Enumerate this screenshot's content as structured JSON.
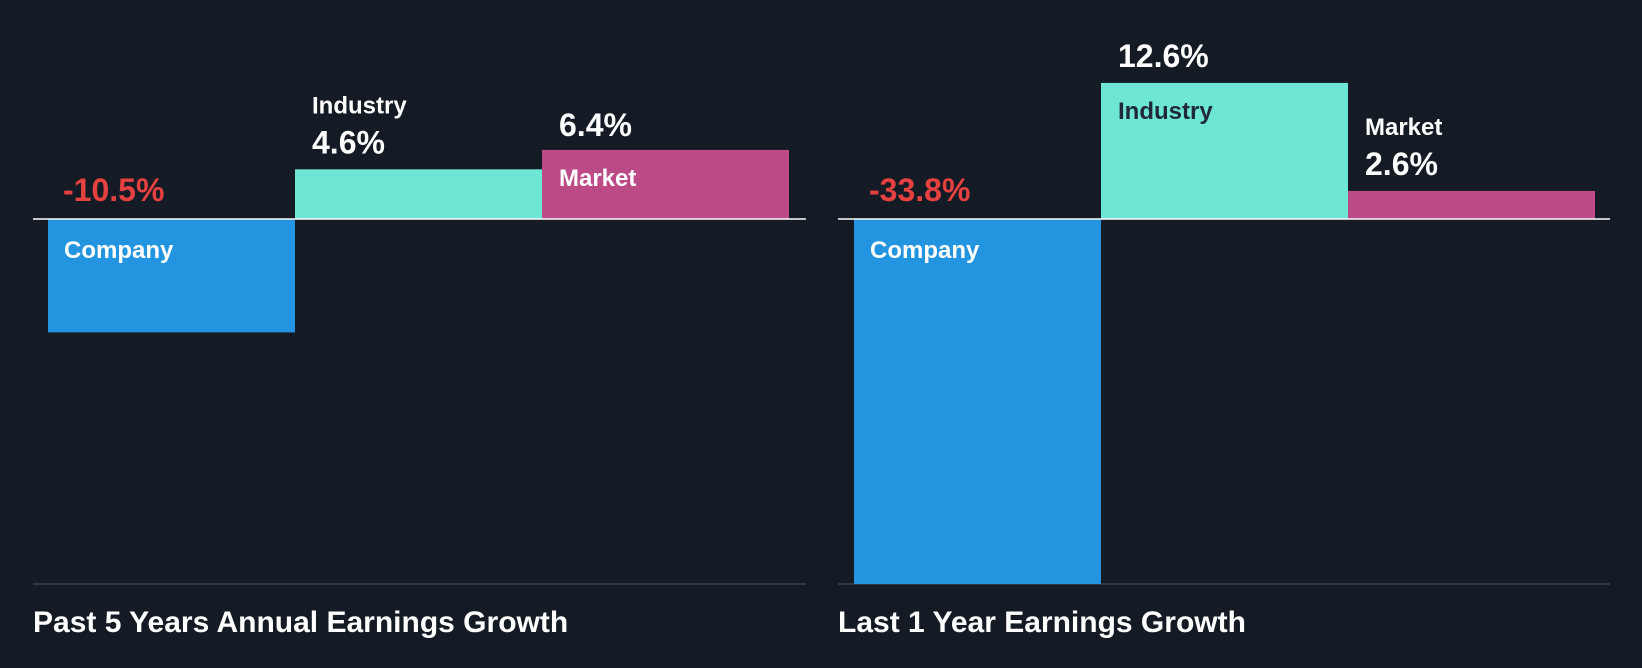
{
  "colors": {
    "background": "#151b24",
    "company": "#2394e0",
    "industry": "#6ee6d6",
    "market": "#bb4a87",
    "negative_text": "#e64141",
    "positive_text": "#ffffff",
    "dark_label": "#1f2937"
  },
  "chart_data": [
    {
      "type": "bar",
      "title": "Past 5 Years Annual Earnings Growth",
      "categories": [
        "Company",
        "Industry",
        "Market"
      ],
      "values": [
        -10.5,
        4.6,
        6.4
      ],
      "value_labels": [
        "-10.5%",
        "4.6%",
        "6.4%"
      ],
      "unit": "%",
      "ylim": [
        -33.8,
        12.6
      ]
    },
    {
      "type": "bar",
      "title": "Last 1 Year Earnings Growth",
      "categories": [
        "Company",
        "Industry",
        "Market"
      ],
      "values": [
        -33.8,
        12.6,
        2.6
      ],
      "value_labels": [
        "-33.8%",
        "12.6%",
        "2.6%"
      ],
      "unit": "%",
      "ylim": [
        -33.8,
        12.6
      ]
    }
  ]
}
